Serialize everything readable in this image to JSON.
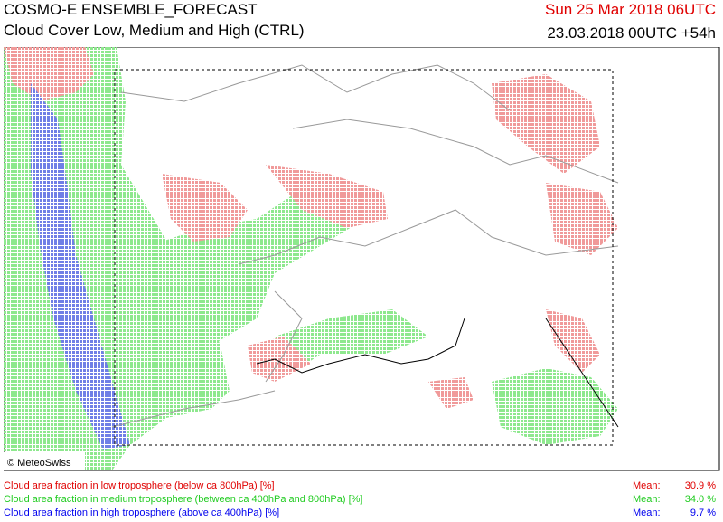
{
  "header": {
    "title": "COSMO-E ENSEMBLE_FORECAST",
    "subtitle": "Cloud Cover Low, Medium and High (CTRL)",
    "valid_time": "Sun 25 Mar 2018 06UTC",
    "run_time": "23.03.2018 00UTC +54h"
  },
  "map": {
    "credit": "© MeteoSwiss"
  },
  "legend": {
    "items": [
      {
        "label": "Cloud area fraction in low troposphere (below ca 800hPa) [%]",
        "mean_label": "Mean:",
        "mean": "30.9 %"
      },
      {
        "label": "Cloud area fraction in medium troposphere (between ca 400hPa and 800hPa) [%]",
        "mean_label": "Mean:",
        "mean": "34.0 %"
      },
      {
        "label": "Cloud area fraction in high troposphere (above ca 400hPa) [%]",
        "mean_label": "Mean:",
        "mean": "9.7 %"
      }
    ]
  }
}
